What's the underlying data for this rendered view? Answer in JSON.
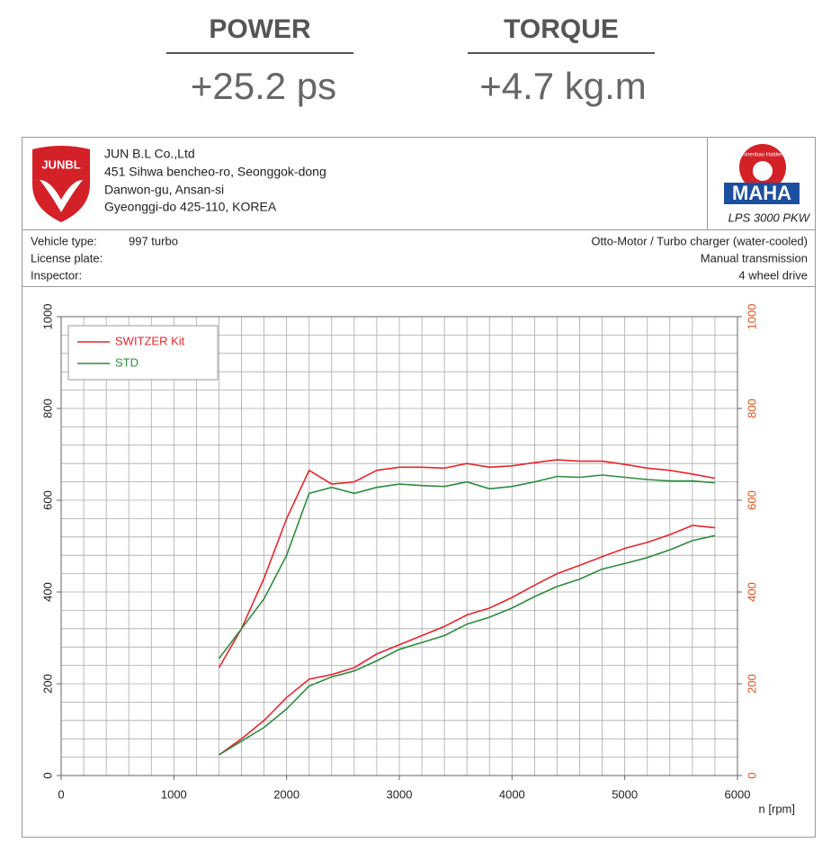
{
  "header": {
    "stats": [
      {
        "label": "POWER",
        "value": "+25.2 ps"
      },
      {
        "label": "TORQUE",
        "value": "+4.7 kg.m"
      }
    ]
  },
  "report": {
    "logo": "JUNBL",
    "company": [
      "JUN B.L Co.,Ltd",
      "451 Sihwa bencheo-ro, Seonggok-dong",
      "Danwon-gu, Ansan-si",
      "Gyeonggi-do 425-110, KOREA"
    ],
    "maha_logo": "MAHA",
    "maha_ring": "Maschinenbau Haldenwang",
    "model": "LPS 3000 PKW",
    "vehicle_left": [
      {
        "label": "Vehicle type:",
        "value": "997 turbo"
      },
      {
        "label": "License plate:"
      },
      {
        "label": "Inspector:"
      }
    ],
    "vehicle_right": [
      "Otto-Motor / Turbo charger (water-cooled)",
      "Manual transmission",
      "4 wheel drive"
    ]
  },
  "chart_data": {
    "type": "line",
    "x": [
      1400,
      1600,
      1800,
      2000,
      2200,
      2400,
      2600,
      2800,
      3000,
      3200,
      3400,
      3600,
      3800,
      4000,
      4200,
      4400,
      4600,
      4800,
      5000,
      5200,
      5400,
      5600,
      5800
    ],
    "series": [
      {
        "name": "SWITZER Kit",
        "color": "#e8262b",
        "values": [
          235,
          320,
          430,
          560,
          665,
          635,
          640,
          665,
          672,
          672,
          670,
          680,
          672,
          675,
          682,
          688,
          685,
          685,
          678,
          670,
          665,
          657,
          648
        ]
      },
      {
        "name": "STD",
        "color": "#2e8b3e",
        "values": [
          255,
          320,
          385,
          480,
          615,
          628,
          615,
          628,
          635,
          632,
          630,
          640,
          625,
          630,
          640,
          652,
          650,
          655,
          650,
          645,
          642,
          642,
          638
        ]
      },
      {
        "color": "#e8262b",
        "values": [
          45,
          80,
          120,
          170,
          210,
          220,
          235,
          265,
          285,
          305,
          325,
          350,
          365,
          388,
          415,
          440,
          458,
          477,
          495,
          508,
          525,
          545,
          540
        ]
      },
      {
        "color": "#2e8b3e",
        "values": [
          45,
          75,
          105,
          145,
          195,
          215,
          228,
          250,
          275,
          290,
          305,
          330,
          345,
          365,
          390,
          412,
          428,
          450,
          462,
          475,
          492,
          512,
          523
        ]
      }
    ],
    "xlim": [
      0,
      6000
    ],
    "xticks": [
      0,
      1000,
      2000,
      3000,
      4000,
      5000,
      6000
    ],
    "ylim": [
      0,
      1000
    ],
    "yticks": [
      0,
      200,
      400,
      600,
      800,
      1000
    ],
    "y2lim": [
      0,
      1000
    ],
    "y2ticks": [
      0,
      200,
      400,
      600,
      800,
      1000
    ],
    "y2color": "#e2531e",
    "xlabel": "n [rpm]",
    "grid": {
      "x_step": 200,
      "y_step": 40
    },
    "legend": "top-left"
  }
}
